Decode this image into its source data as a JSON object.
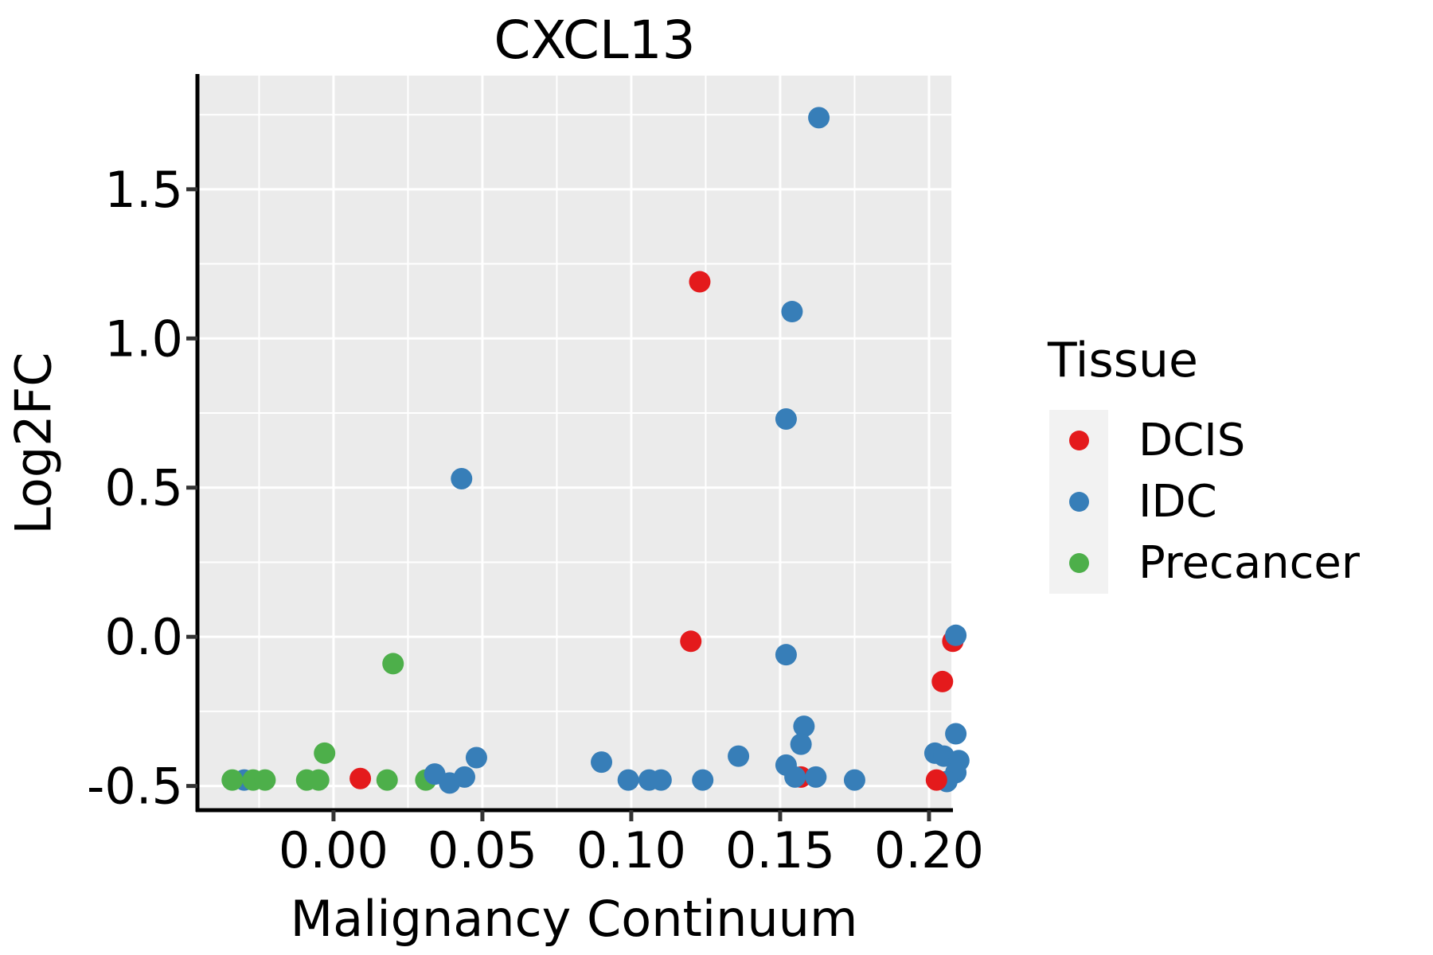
{
  "page": {
    "title": "CXCL13"
  },
  "colors": {
    "panel_background": "#EBEBEB",
    "gridline": "#FFFFFF",
    "axis_line": "#000000",
    "tick_mark": "#333333",
    "text": "#000000",
    "legend_key_background": "#F2F2F2",
    "dcis_red": "#E41A1C",
    "idc_blue": "#377EB8",
    "precancer_green": "#4DAF4A"
  },
  "chart_data": {
    "type": "scatter",
    "title": "CXCL13",
    "xlabel": "Malignancy Continuum",
    "ylabel": "Log2FC",
    "legend_title": "Tissue",
    "legend_position": "right",
    "grid": true,
    "xlim": [
      -0.0457,
      0.2075
    ],
    "ylim": [
      -0.581,
      1.881
    ],
    "x_ticks": [
      0.0,
      0.05,
      0.1,
      0.15,
      0.2
    ],
    "x_tick_labels": [
      "0.00",
      "0.05",
      "0.10",
      "0.15",
      "0.20"
    ],
    "y_ticks": [
      -0.5,
      0.0,
      0.5,
      1.0,
      1.5
    ],
    "y_tick_labels": [
      "-0.5",
      "0.0",
      "0.5",
      "1.0",
      "1.5"
    ],
    "x_minor_ticks": [
      -0.025,
      0.025,
      0.075,
      0.125,
      0.175
    ],
    "y_minor_ticks": [
      -0.25,
      0.25,
      0.75,
      1.25,
      1.75
    ],
    "series": [
      {
        "name": "DCIS",
        "color": "#E41A1C"
      },
      {
        "name": "IDC",
        "color": "#377EB8"
      },
      {
        "name": "Precancer",
        "color": "#4DAF4A"
      }
    ],
    "points": [
      {
        "x": -0.03,
        "y": -0.48,
        "series": "IDC"
      },
      {
        "x": -0.034,
        "y": -0.48,
        "series": "Precancer"
      },
      {
        "x": -0.027,
        "y": -0.48,
        "series": "Precancer"
      },
      {
        "x": -0.023,
        "y": -0.48,
        "series": "Precancer"
      },
      {
        "x": -0.009,
        "y": -0.48,
        "series": "Precancer"
      },
      {
        "x": -0.005,
        "y": -0.48,
        "series": "Precancer"
      },
      {
        "x": -0.003,
        "y": -0.39,
        "series": "Precancer"
      },
      {
        "x": 0.009,
        "y": -0.475,
        "series": "DCIS"
      },
      {
        "x": 0.018,
        "y": -0.48,
        "series": "Precancer"
      },
      {
        "x": 0.02,
        "y": -0.09,
        "series": "Precancer"
      },
      {
        "x": 0.031,
        "y": -0.48,
        "series": "Precancer"
      },
      {
        "x": 0.034,
        "y": -0.46,
        "series": "IDC"
      },
      {
        "x": 0.039,
        "y": -0.49,
        "series": "IDC"
      },
      {
        "x": 0.043,
        "y": 0.53,
        "series": "IDC"
      },
      {
        "x": 0.044,
        "y": -0.47,
        "series": "IDC"
      },
      {
        "x": 0.048,
        "y": -0.405,
        "series": "IDC"
      },
      {
        "x": 0.09,
        "y": -0.42,
        "series": "IDC"
      },
      {
        "x": 0.099,
        "y": -0.48,
        "series": "IDC"
      },
      {
        "x": 0.106,
        "y": -0.48,
        "series": "IDC"
      },
      {
        "x": 0.11,
        "y": -0.48,
        "series": "IDC"
      },
      {
        "x": 0.123,
        "y": 1.19,
        "series": "DCIS"
      },
      {
        "x": 0.12,
        "y": -0.015,
        "series": "DCIS"
      },
      {
        "x": 0.124,
        "y": -0.48,
        "series": "IDC"
      },
      {
        "x": 0.136,
        "y": -0.4,
        "series": "IDC"
      },
      {
        "x": 0.152,
        "y": -0.06,
        "series": "IDC"
      },
      {
        "x": 0.154,
        "y": 1.09,
        "series": "IDC"
      },
      {
        "x": 0.152,
        "y": 0.73,
        "series": "IDC"
      },
      {
        "x": 0.163,
        "y": 1.74,
        "series": "IDC"
      },
      {
        "x": 0.158,
        "y": -0.3,
        "series": "IDC"
      },
      {
        "x": 0.157,
        "y": -0.36,
        "series": "IDC"
      },
      {
        "x": 0.157,
        "y": -0.47,
        "series": "DCIS"
      },
      {
        "x": 0.152,
        "y": -0.43,
        "series": "IDC"
      },
      {
        "x": 0.155,
        "y": -0.47,
        "series": "IDC"
      },
      {
        "x": 0.162,
        "y": -0.47,
        "series": "IDC"
      },
      {
        "x": 0.175,
        "y": -0.48,
        "series": "IDC"
      },
      {
        "x": 0.208,
        "y": -0.015,
        "series": "DCIS"
      },
      {
        "x": 0.209,
        "y": 0.005,
        "series": "IDC"
      },
      {
        "x": 0.2045,
        "y": -0.15,
        "series": "DCIS"
      },
      {
        "x": 0.209,
        "y": -0.325,
        "series": "IDC"
      },
      {
        "x": 0.202,
        "y": -0.39,
        "series": "IDC"
      },
      {
        "x": 0.205,
        "y": -0.4,
        "series": "IDC"
      },
      {
        "x": 0.21,
        "y": -0.415,
        "series": "IDC"
      },
      {
        "x": 0.209,
        "y": -0.455,
        "series": "IDC"
      },
      {
        "x": 0.206,
        "y": -0.485,
        "series": "IDC"
      },
      {
        "x": 0.2025,
        "y": -0.48,
        "series": "DCIS"
      }
    ]
  }
}
